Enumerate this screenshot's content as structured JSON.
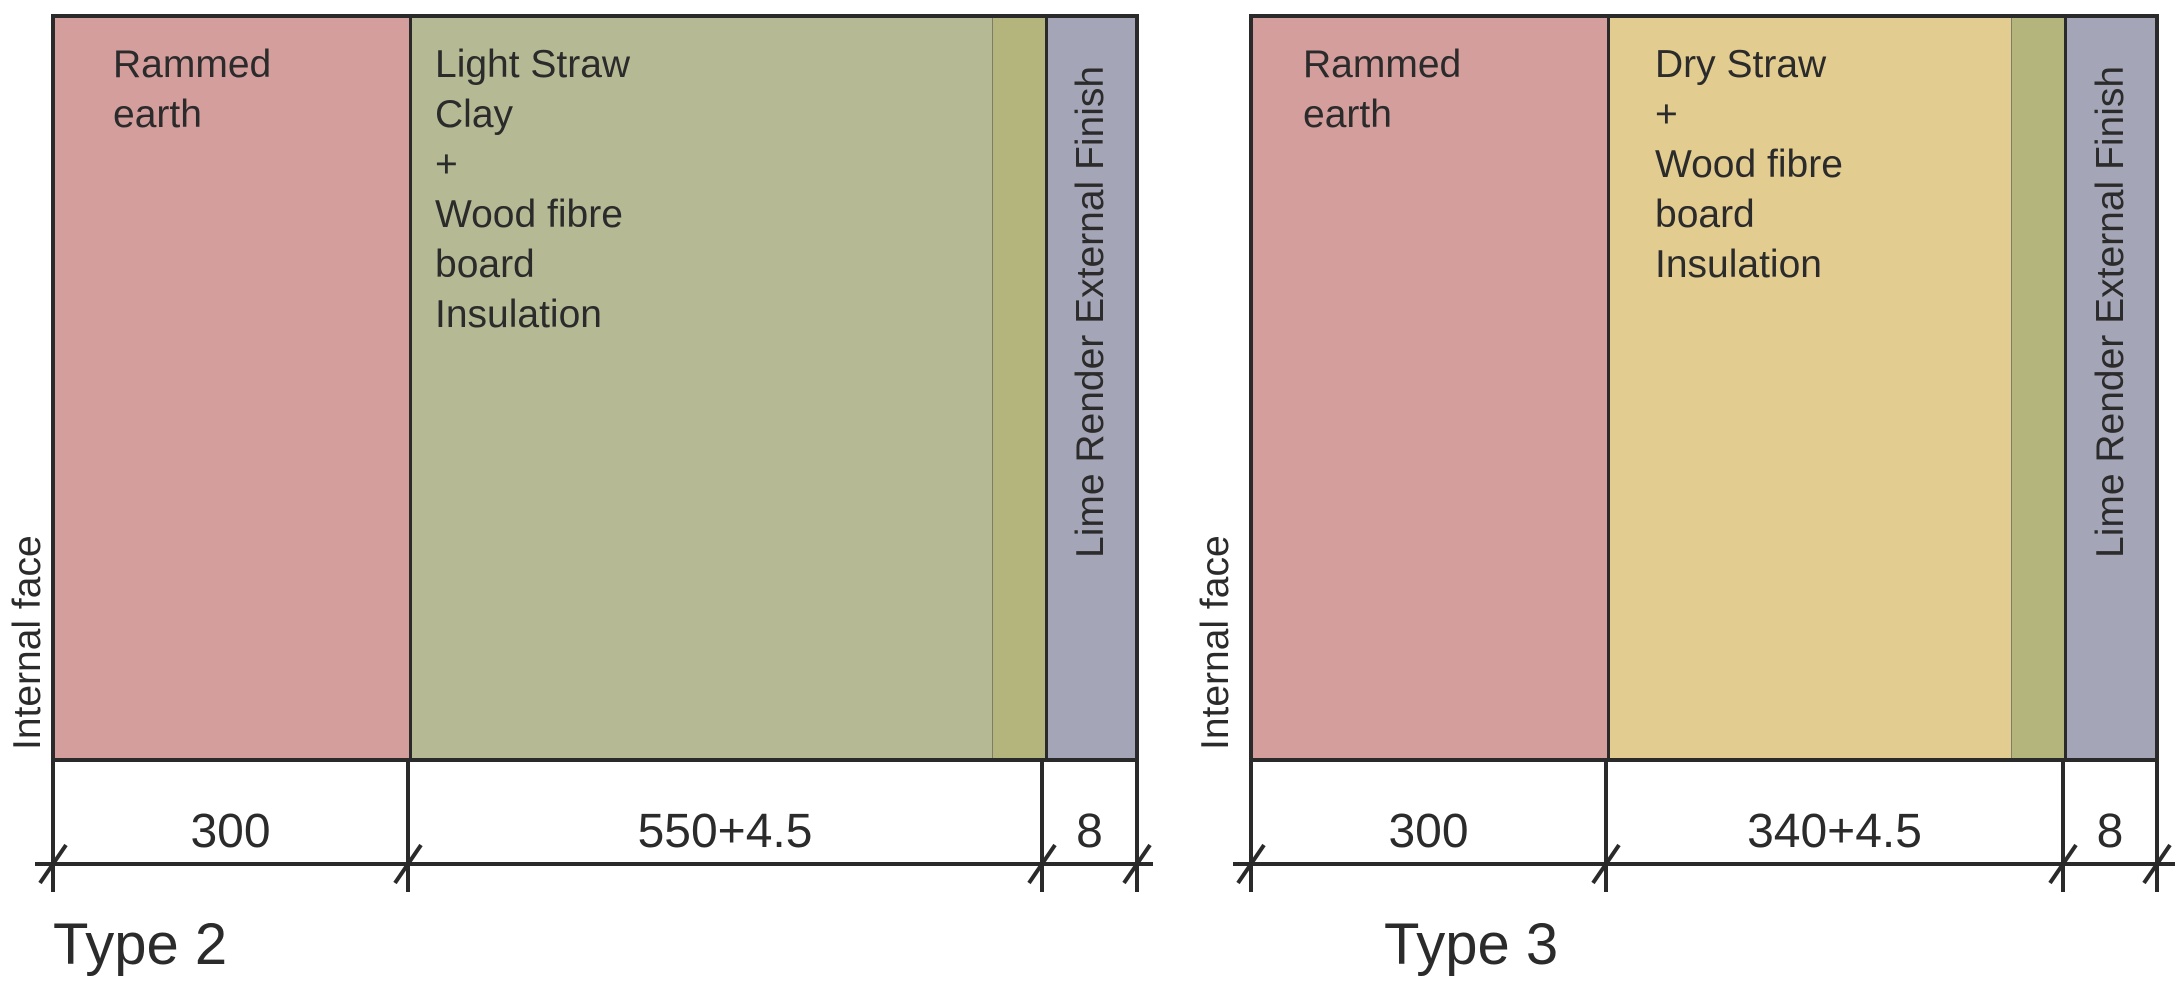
{
  "panels": [
    {
      "title": "Type 2",
      "internal_label": "Internal face",
      "layers": [
        {
          "label": "Rammed\nearth",
          "color": "#d49e9d"
        },
        {
          "label": "Light Straw\nClay\n+\nWood fibre\nboard\nInsulation",
          "color": "#b6ba94"
        },
        {
          "label": "",
          "color": "#b3b57d"
        },
        {
          "label": "Lime Render External Finish",
          "color": "#a4a5b6"
        }
      ],
      "dimensions": [
        "300",
        "550+4.5",
        "8"
      ]
    },
    {
      "title": "Type 3",
      "internal_label": "Internal face",
      "layers": [
        {
          "label": "Rammed\nearth",
          "color": "#d49e9d"
        },
        {
          "label": "Dry Straw\n+\nWood fibre\nboard\nInsulation",
          "color": "#e3cc90"
        },
        {
          "label": "",
          "color": "#b3b57d"
        },
        {
          "label": "Lime Render External Finish",
          "color": "#a4a5b6"
        }
      ],
      "dimensions": [
        "300",
        "340+4.5",
        "8"
      ]
    }
  ]
}
